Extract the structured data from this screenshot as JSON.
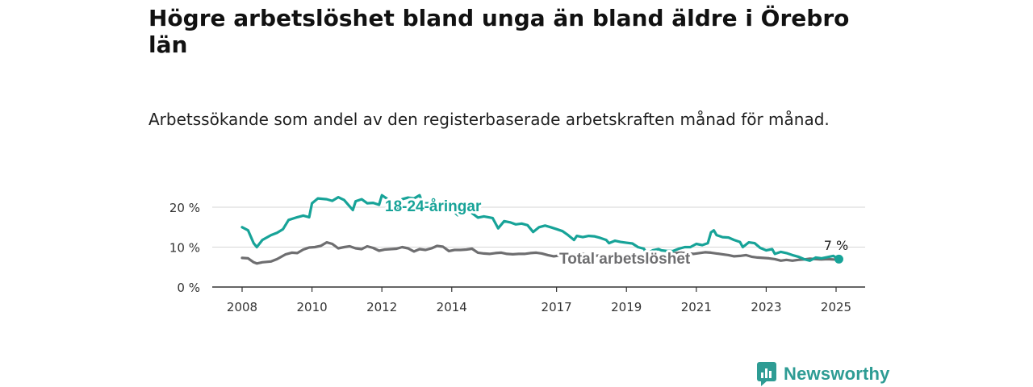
{
  "header": {
    "title": "Högre arbetslöshet bland unga än bland äldre i Örebro län",
    "subtitle": "Arbetssökande som andel av den registerbaserade arbetskraften månad för månad."
  },
  "branding": {
    "name": "Newsworthy",
    "icon": "chart-bubble-icon",
    "color": "#2e9c94"
  },
  "chart_data": {
    "type": "line",
    "title": "Högre arbetslöshet bland unga än bland äldre i Örebro län",
    "subtitle": "Arbetssökande som andel av den registerbaserade arbetskraften månad för månad.",
    "xlabel": "",
    "ylabel": "",
    "xlim": [
      2008,
      2025.2
    ],
    "ylim": [
      0,
      20
    ],
    "x_ticks": [
      2008,
      2010,
      2012,
      2014,
      2017,
      2019,
      2021,
      2023,
      2025
    ],
    "y_ticks": [
      {
        "value": 0,
        "label": "0 %"
      },
      {
        "value": 10,
        "label": "10 %"
      },
      {
        "value": 20,
        "label": "20 %"
      }
    ],
    "grid": true,
    "end_label": "7 %",
    "series": [
      {
        "name": "18-24-åringar",
        "color": "#17a398",
        "points": [
          [
            2008.0,
            15.0
          ],
          [
            2008.17,
            14.2
          ],
          [
            2008.33,
            11.0
          ],
          [
            2008.42,
            10.0
          ],
          [
            2008.58,
            11.8
          ],
          [
            2008.83,
            13.0
          ],
          [
            2009.0,
            13.6
          ],
          [
            2009.17,
            14.5
          ],
          [
            2009.33,
            16.8
          ],
          [
            2009.58,
            17.5
          ],
          [
            2009.75,
            17.9
          ],
          [
            2009.92,
            17.5
          ],
          [
            2010.0,
            21.0
          ],
          [
            2010.17,
            22.2
          ],
          [
            2010.42,
            22.0
          ],
          [
            2010.58,
            21.6
          ],
          [
            2010.75,
            22.5
          ],
          [
            2010.92,
            21.8
          ],
          [
            2011.17,
            19.3
          ],
          [
            2011.25,
            21.5
          ],
          [
            2011.42,
            22.0
          ],
          [
            2011.58,
            21.0
          ],
          [
            2011.75,
            21.1
          ],
          [
            2011.92,
            20.6
          ],
          [
            2012.0,
            23.0
          ],
          [
            2012.17,
            22.0
          ],
          [
            2012.33,
            20.0
          ],
          [
            2012.42,
            19.0
          ],
          [
            2012.58,
            22.0
          ],
          [
            2012.75,
            22.4
          ],
          [
            2012.92,
            22.2
          ],
          [
            2013.08,
            23.0
          ],
          [
            2013.17,
            21.0
          ],
          [
            2013.42,
            21.0
          ],
          [
            2013.58,
            20.0
          ],
          [
            2013.83,
            20.6
          ],
          [
            2014.0,
            19.5
          ],
          [
            2014.17,
            18.0
          ],
          [
            2014.25,
            19.0
          ],
          [
            2014.42,
            20.0
          ],
          [
            2014.58,
            18.5
          ],
          [
            2014.75,
            17.4
          ],
          [
            2014.92,
            17.7
          ],
          [
            2015.17,
            17.3
          ],
          [
            2015.33,
            14.7
          ],
          [
            2015.5,
            16.5
          ],
          [
            2015.67,
            16.2
          ],
          [
            2015.83,
            15.7
          ],
          [
            2016.0,
            15.9
          ],
          [
            2016.17,
            15.5
          ],
          [
            2016.33,
            13.8
          ],
          [
            2016.5,
            15.0
          ],
          [
            2016.67,
            15.4
          ],
          [
            2016.83,
            15.0
          ],
          [
            2017.0,
            14.5
          ],
          [
            2017.17,
            14.0
          ],
          [
            2017.33,
            13.0
          ],
          [
            2017.5,
            11.8
          ],
          [
            2017.58,
            12.8
          ],
          [
            2017.75,
            12.5
          ],
          [
            2017.92,
            12.8
          ],
          [
            2018.08,
            12.7
          ],
          [
            2018.25,
            12.3
          ],
          [
            2018.42,
            11.8
          ],
          [
            2018.5,
            11.0
          ],
          [
            2018.67,
            11.6
          ],
          [
            2018.83,
            11.3
          ],
          [
            2019.0,
            11.1
          ],
          [
            2019.17,
            10.9
          ],
          [
            2019.33,
            10.0
          ],
          [
            2019.5,
            9.6
          ],
          [
            2019.58,
            8.3
          ],
          [
            2019.75,
            9.2
          ],
          [
            2019.92,
            9.5
          ],
          [
            2020.0,
            9.2
          ],
          [
            2020.17,
            9.0
          ],
          [
            2020.33,
            9.0
          ],
          [
            2020.5,
            9.6
          ],
          [
            2020.67,
            10.0
          ],
          [
            2020.83,
            10.0
          ],
          [
            2021.0,
            10.8
          ],
          [
            2021.17,
            10.5
          ],
          [
            2021.33,
            11.0
          ],
          [
            2021.42,
            13.7
          ],
          [
            2021.5,
            14.2
          ],
          [
            2021.58,
            13.0
          ],
          [
            2021.75,
            12.5
          ],
          [
            2021.92,
            12.4
          ],
          [
            2022.08,
            11.8
          ],
          [
            2022.25,
            11.3
          ],
          [
            2022.33,
            10.0
          ],
          [
            2022.5,
            11.2
          ],
          [
            2022.67,
            11.0
          ],
          [
            2022.83,
            9.8
          ],
          [
            2023.0,
            9.2
          ],
          [
            2023.17,
            9.5
          ],
          [
            2023.25,
            8.3
          ],
          [
            2023.42,
            8.8
          ],
          [
            2023.58,
            8.5
          ],
          [
            2023.75,
            8.0
          ],
          [
            2023.92,
            7.6
          ],
          [
            2024.08,
            7.0
          ],
          [
            2024.25,
            6.6
          ],
          [
            2024.42,
            7.4
          ],
          [
            2024.58,
            7.2
          ],
          [
            2024.75,
            7.5
          ],
          [
            2024.92,
            7.8
          ],
          [
            2025.0,
            7.4
          ],
          [
            2025.08,
            7.2
          ]
        ]
      },
      {
        "name": "Total arbetslöshet",
        "color": "#6e6e70",
        "points": [
          [
            2008.0,
            7.3
          ],
          [
            2008.17,
            7.2
          ],
          [
            2008.33,
            6.2
          ],
          [
            2008.42,
            5.9
          ],
          [
            2008.58,
            6.2
          ],
          [
            2008.83,
            6.4
          ],
          [
            2009.0,
            7.0
          ],
          [
            2009.25,
            8.2
          ],
          [
            2009.42,
            8.6
          ],
          [
            2009.58,
            8.5
          ],
          [
            2009.75,
            9.4
          ],
          [
            2009.92,
            9.9
          ],
          [
            2010.08,
            10.0
          ],
          [
            2010.25,
            10.3
          ],
          [
            2010.42,
            11.2
          ],
          [
            2010.58,
            10.8
          ],
          [
            2010.75,
            9.7
          ],
          [
            2010.92,
            10.0
          ],
          [
            2011.08,
            10.2
          ],
          [
            2011.25,
            9.7
          ],
          [
            2011.42,
            9.5
          ],
          [
            2011.58,
            10.2
          ],
          [
            2011.75,
            9.8
          ],
          [
            2011.92,
            9.1
          ],
          [
            2012.08,
            9.4
          ],
          [
            2012.25,
            9.5
          ],
          [
            2012.42,
            9.6
          ],
          [
            2012.58,
            10.0
          ],
          [
            2012.75,
            9.7
          ],
          [
            2012.92,
            8.9
          ],
          [
            2013.08,
            9.5
          ],
          [
            2013.25,
            9.3
          ],
          [
            2013.42,
            9.7
          ],
          [
            2013.58,
            10.3
          ],
          [
            2013.75,
            10.1
          ],
          [
            2013.92,
            9.0
          ],
          [
            2014.08,
            9.3
          ],
          [
            2014.25,
            9.3
          ],
          [
            2014.42,
            9.4
          ],
          [
            2014.58,
            9.6
          ],
          [
            2014.75,
            8.6
          ],
          [
            2014.92,
            8.4
          ],
          [
            2015.08,
            8.3
          ],
          [
            2015.25,
            8.5
          ],
          [
            2015.42,
            8.6
          ],
          [
            2015.58,
            8.3
          ],
          [
            2015.75,
            8.2
          ],
          [
            2015.92,
            8.3
          ],
          [
            2016.08,
            8.3
          ],
          [
            2016.25,
            8.5
          ],
          [
            2016.42,
            8.6
          ],
          [
            2016.58,
            8.4
          ],
          [
            2016.75,
            8.0
          ],
          [
            2016.92,
            7.7
          ],
          [
            2017.08,
            7.9
          ],
          [
            2017.25,
            8.0
          ],
          [
            2017.42,
            8.0
          ],
          [
            2017.58,
            8.2
          ],
          [
            2017.75,
            8.3
          ],
          [
            2017.92,
            8.0
          ],
          [
            2018.08,
            7.8
          ],
          [
            2018.25,
            7.9
          ],
          [
            2018.42,
            7.8
          ],
          [
            2018.58,
            7.7
          ],
          [
            2018.75,
            7.7
          ],
          [
            2018.92,
            7.6
          ],
          [
            2019.08,
            7.7
          ],
          [
            2019.25,
            7.8
          ],
          [
            2019.42,
            7.8
          ],
          [
            2019.58,
            7.9
          ],
          [
            2019.75,
            7.9
          ],
          [
            2019.92,
            7.8
          ],
          [
            2020.08,
            8.0
          ],
          [
            2020.25,
            8.3
          ],
          [
            2020.42,
            8.5
          ],
          [
            2020.58,
            8.6
          ],
          [
            2020.75,
            8.4
          ],
          [
            2020.92,
            8.3
          ],
          [
            2021.08,
            8.5
          ],
          [
            2021.25,
            8.7
          ],
          [
            2021.42,
            8.6
          ],
          [
            2021.58,
            8.4
          ],
          [
            2021.75,
            8.2
          ],
          [
            2021.92,
            8.0
          ],
          [
            2022.08,
            7.7
          ],
          [
            2022.25,
            7.8
          ],
          [
            2022.42,
            8.0
          ],
          [
            2022.58,
            7.6
          ],
          [
            2022.75,
            7.4
          ],
          [
            2022.92,
            7.3
          ],
          [
            2023.08,
            7.2
          ],
          [
            2023.25,
            7.0
          ],
          [
            2023.42,
            6.6
          ],
          [
            2023.58,
            6.8
          ],
          [
            2023.75,
            6.6
          ],
          [
            2023.92,
            6.8
          ],
          [
            2024.08,
            6.9
          ],
          [
            2024.25,
            7.1
          ],
          [
            2024.42,
            7.0
          ],
          [
            2024.58,
            6.9
          ],
          [
            2024.75,
            7.0
          ],
          [
            2024.92,
            6.9
          ],
          [
            2025.08,
            6.9
          ]
        ]
      }
    ]
  }
}
